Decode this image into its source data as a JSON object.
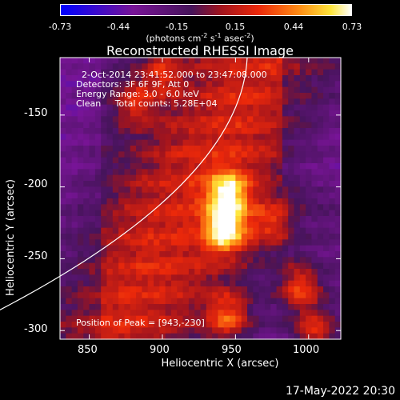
{
  "colorbar": {
    "ticks": [
      "-0.73",
      "-0.44",
      "-0.15",
      "0.15",
      "0.44",
      "0.73"
    ],
    "label_main": "(photons cm",
    "label_exp1": "-2",
    "label_mid": " s",
    "label_exp2": "-1",
    "label_asec": " asec",
    "label_exp3": "-2",
    "label_end": ")",
    "min": -0.73,
    "max": 0.73
  },
  "title": "Reconstructed RHESSI Image",
  "info": {
    "time": "2-Oct-2014 23:41:52.000 to 23:47:08.000",
    "detectors": "Detectors: 3F 6F 9F, Att 0",
    "energy": "Energy Range: 3.0 - 6.0 keV",
    "clean": "Clean     Total counts: 5.28E+04",
    "peak": "Position of Peak = [943,-230]"
  },
  "axes": {
    "xlabel": "Heliocentric X (arcsec)",
    "ylabel": "Heliocentric Y (arcsec)"
  },
  "footer": "17-May-2022 20:30",
  "chart_data": {
    "type": "heatmap",
    "title": "Reconstructed RHESSI Image",
    "xlabel": "Heliocentric X (arcsec)",
    "ylabel": "Heliocentric Y (arcsec)",
    "xlim": [
      830,
      1022
    ],
    "ylim": [
      -306,
      -110
    ],
    "x_ticks": [
      850,
      900,
      950,
      1000
    ],
    "y_ticks": [
      -150,
      -200,
      -250,
      -300
    ],
    "colorbar_range": [
      -0.73,
      0.73
    ],
    "peak_position": [
      943,
      -230
    ],
    "sources": [
      {
        "x": 943,
        "y": -230,
        "value": 0.73
      },
      {
        "x": 945,
        "y": -205,
        "value": 0.62
      },
      {
        "x": 975,
        "y": -225,
        "value": 0.34
      },
      {
        "x": 995,
        "y": -270,
        "value": 0.5
      },
      {
        "x": 945,
        "y": -290,
        "value": 0.45
      },
      {
        "x": 1005,
        "y": -300,
        "value": 0.45
      },
      {
        "x": 880,
        "y": -140,
        "value": 0.35
      },
      {
        "x": 900,
        "y": -120,
        "value": 0.3
      }
    ]
  }
}
